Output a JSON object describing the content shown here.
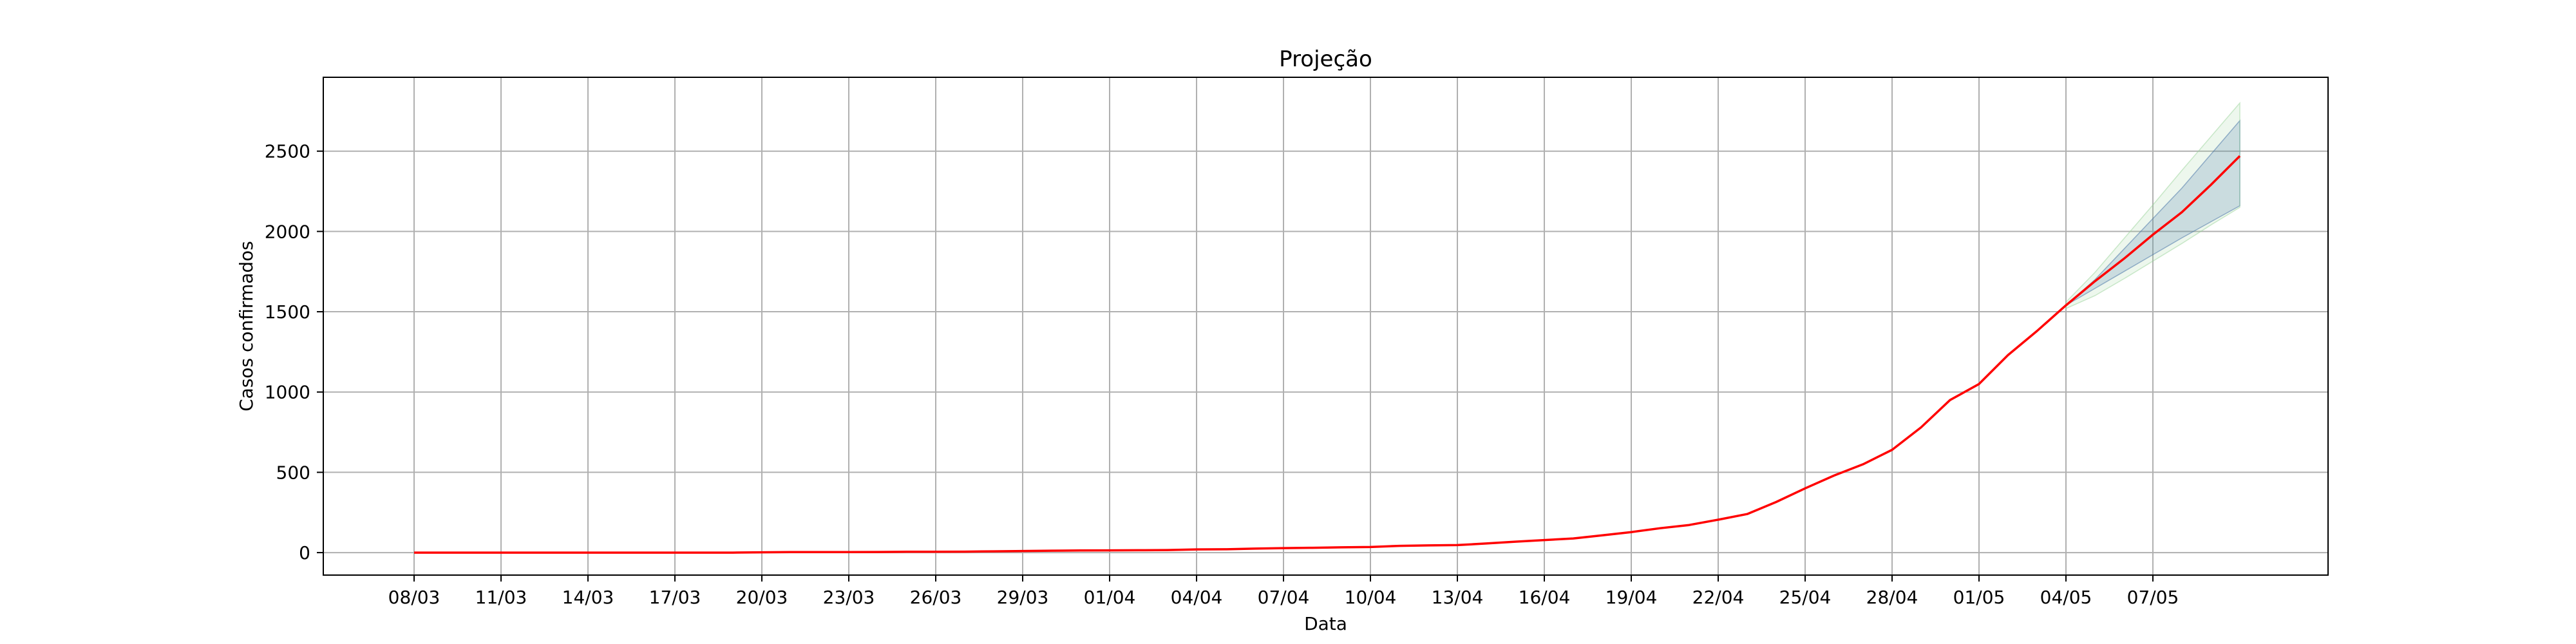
{
  "chart_data": {
    "type": "line",
    "title": "Projeção",
    "xlabel": "Data",
    "ylabel": "Casos confirmados",
    "grid": true,
    "ylim": [
      -140,
      2960
    ],
    "yticks": [
      0,
      500,
      1000,
      1500,
      2000,
      2500
    ],
    "x_ticks": [
      "08/03",
      "11/03",
      "14/03",
      "17/03",
      "20/03",
      "23/03",
      "26/03",
      "29/03",
      "01/04",
      "04/04",
      "07/04",
      "10/04",
      "13/04",
      "16/04",
      "19/04",
      "22/04",
      "25/04",
      "28/04",
      "01/05",
      "04/05",
      "07/05"
    ],
    "dates": [
      "08/03",
      "09/03",
      "10/03",
      "11/03",
      "12/03",
      "13/03",
      "14/03",
      "15/03",
      "16/03",
      "17/03",
      "18/03",
      "19/03",
      "20/03",
      "21/03",
      "22/03",
      "23/03",
      "24/03",
      "25/03",
      "26/03",
      "27/03",
      "28/03",
      "29/03",
      "30/03",
      "31/03",
      "01/04",
      "02/04",
      "03/04",
      "04/04",
      "05/04",
      "06/04",
      "07/04",
      "08/04",
      "09/04",
      "10/04",
      "11/04",
      "12/04",
      "13/04",
      "14/04",
      "15/04",
      "16/04",
      "17/04",
      "18/04",
      "19/04",
      "20/04",
      "21/04",
      "22/04",
      "23/04",
      "24/04",
      "25/04",
      "26/04",
      "27/04",
      "28/04",
      "29/04",
      "30/04",
      "01/05",
      "02/05",
      "03/05",
      "04/05",
      "05/05",
      "06/05",
      "07/05",
      "08/05",
      "09/05",
      "10/05"
    ],
    "series": [
      {
        "color": "#ff0000",
        "values": [
          0,
          0,
          0,
          0,
          0,
          0,
          0,
          0,
          0,
          0,
          0,
          0,
          2,
          3,
          3,
          3,
          4,
          5,
          5,
          6,
          8,
          10,
          12,
          13,
          14,
          15,
          16,
          20,
          21,
          25,
          28,
          30,
          33,
          35,
          42,
          45,
          47,
          57,
          68,
          78,
          88,
          108,
          128,
          152,
          172,
          205,
          240,
          315,
          400,
          480,
          550,
          640,
          780,
          950,
          1050,
          1230,
          1380,
          1540,
          1690,
          1830,
          1980,
          2120,
          2290,
          2470
        ]
      }
    ],
    "bands": [
      {
        "color": "#2e5aa8",
        "start_date": "04/05",
        "lower": [
          1540,
          1645,
          1750,
          1855,
          1960,
          2060,
          2160
        ],
        "upper": [
          1540,
          1700,
          1890,
          2080,
          2270,
          2480,
          2690
        ]
      },
      {
        "color": "#9ad39a",
        "start_date": "04/05",
        "lower": [
          1520,
          1600,
          1705,
          1815,
          1925,
          2040,
          2150
        ],
        "upper": [
          1560,
          1745,
          1955,
          2165,
          2380,
          2590,
          2800
        ]
      }
    ]
  }
}
